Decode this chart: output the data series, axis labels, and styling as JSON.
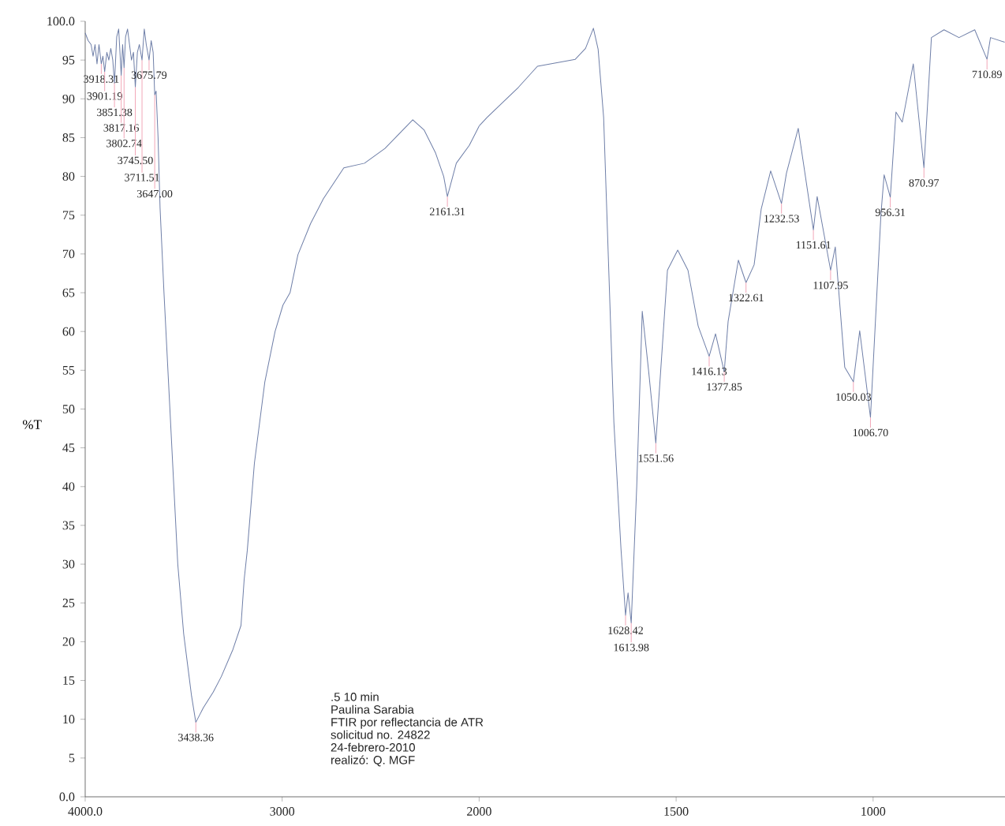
{
  "chart_data": [
    {
      "type": "line",
      "ylabel": "%T",
      "xlim": [
        4000,
        2000
      ],
      "xticks": [
        {
          "value": 4000,
          "label": "4000.0"
        },
        3000,
        2000
      ],
      "ylim": [
        0,
        100
      ],
      "yticks": [
        {
          "value": 0,
          "label": "0.0"
        },
        5,
        10,
        15,
        20,
        25,
        30,
        35,
        40,
        45,
        50,
        55,
        60,
        65,
        70,
        75,
        80,
        85,
        90,
        95,
        {
          "value": 100,
          "label": "100.0"
        }
      ],
      "series": [
        {
          "color": "#6f7fa8",
          "x": [
            4000,
            3985,
            3970,
            3960,
            3950,
            3940,
            3930,
            3918.31,
            3910,
            3901.19,
            3890,
            3880,
            3870,
            3860,
            3851.38,
            3840,
            3830,
            3817.16,
            3810,
            3802.74,
            3795,
            3785,
            3775,
            3765,
            3755,
            3745.5,
            3735,
            3725,
            3711.51,
            3700,
            3690,
            3675.79,
            3665,
            3655,
            3647.0,
            3640,
            3630,
            3620,
            3600,
            3590,
            3560,
            3530,
            3500,
            3480,
            3460,
            3438.36,
            3400,
            3350,
            3309,
            3250,
            3209,
            3193,
            3177,
            3141,
            3088,
            3036,
            2996,
            2960,
            2920,
            2856,
            2791,
            2687,
            2582,
            2478,
            2337,
            2280,
            2221,
            2180,
            2161.31,
            2116,
            2050,
            2000
          ],
          "values": [
            98.5,
            97.5,
            97,
            95.5,
            97,
            94.5,
            97,
            94.5,
            95.5,
            93.5,
            96,
            95,
            96.5,
            95,
            92,
            98,
            99,
            93,
            97,
            94,
            98,
            99,
            97,
            95,
            96,
            91.5,
            96,
            97,
            95,
            99,
            97,
            95,
            97.5,
            96,
            90.5,
            91,
            85,
            76,
            65,
            60,
            45,
            30,
            21,
            17,
            13,
            9.6,
            11.5,
            13.5,
            15.5,
            19,
            22.1,
            28,
            31.8,
            43,
            53.5,
            60,
            63.4,
            65,
            69.9,
            73.9,
            77.1,
            81.1,
            81.7,
            83.6,
            87.3,
            86,
            83,
            80,
            77.4,
            81.7,
            84,
            86.5
          ]
        }
      ],
      "annotations": [
        {
          "text": "3918.31",
          "x": 3918.31,
          "y": 94.5
        },
        {
          "text": "3901.19",
          "x": 3901.19,
          "y": 93.5
        },
        {
          "text": "3851.38",
          "x": 3851.38,
          "y": 92
        },
        {
          "text": "3817.16",
          "x": 3817.16,
          "y": 93
        },
        {
          "text": "3802.74",
          "x": 3802.74,
          "y": 94
        },
        {
          "text": "3745.50",
          "x": 3745.5,
          "y": 91.5
        },
        {
          "text": "3711.51",
          "x": 3711.51,
          "y": 95
        },
        {
          "text": "3675.79",
          "x": 3675.79,
          "y": 95
        },
        {
          "text": "3647.00",
          "x": 3647.0,
          "y": 90.5
        },
        {
          "text": "3438.36",
          "x": 3438.36,
          "y": 9.6
        },
        {
          "text": "2161.31",
          "x": 2161.31,
          "y": 77.4
        },
        ".5  10 min",
        "Paulina Sarabia",
        "FTIR por reflectancia de ATR",
        "solicitud no. 24822",
        "24-febrero-2010",
        "realizó: Q. MGF"
      ]
    },
    {
      "type": "line",
      "xlim": [
        2000,
        665
      ],
      "xticks": [
        1500,
        1000
      ],
      "ylim": [
        0,
        100
      ],
      "tick_labels": "x",
      "series": [
        {
          "color": "#6f7fa8",
          "x": [
            2000,
            1980,
            1900,
            1852,
            1756,
            1730,
            1710,
            1698,
            1684,
            1658,
            1640,
            1628.42,
            1622,
            1613.98,
            1600,
            1586,
            1570,
            1551.56,
            1522,
            1496,
            1470,
            1444,
            1416.13,
            1400,
            1377.85,
            1368,
            1342,
            1322.61,
            1302,
            1284,
            1260,
            1232.53,
            1220,
            1190,
            1151.61,
            1142,
            1107.95,
            1096,
            1072,
            1050.03,
            1034,
            1006.7,
            980,
            972,
            956.31,
            942,
            926,
            898,
            870.97,
            852,
            820,
            782,
            742,
            710.89,
            702,
            666
          ],
          "values": [
            86.5,
            87.6,
            91.5,
            94.2,
            95.1,
            96.5,
            99.1,
            96.4,
            87.6,
            48.3,
            32,
            23.4,
            26.3,
            22.4,
            40,
            62.6,
            55,
            45.6,
            67.9,
            70.5,
            67.9,
            60.7,
            56.8,
            59.7,
            54.8,
            61.3,
            69.2,
            66.3,
            68.6,
            75.8,
            80.7,
            76.5,
            80.4,
            86.2,
            73.1,
            77.4,
            67.9,
            70.9,
            55.4,
            53.5,
            60.1,
            48.9,
            75.2,
            80.2,
            77.3,
            88.3,
            87.0,
            94.5,
            81.1,
            97.9,
            98.9,
            97.9,
            98.9,
            95.1,
            97.9,
            97.3
          ]
        }
      ],
      "annotations": [
        {
          "text": "1628.42",
          "x": 1628.42,
          "y": 23.4
        },
        {
          "text": "1613.98",
          "x": 1613.98,
          "y": 22.4
        },
        {
          "text": "1551.56",
          "x": 1551.56,
          "y": 45.6
        },
        {
          "text": "1416.13",
          "x": 1416.13,
          "y": 56.8
        },
        {
          "text": "1377.85",
          "x": 1377.85,
          "y": 54.8
        },
        {
          "text": "1322.61",
          "x": 1322.61,
          "y": 66.3
        },
        {
          "text": "1232.53",
          "x": 1232.53,
          "y": 76.5
        },
        {
          "text": "1151.61",
          "x": 1151.61,
          "y": 73.1
        },
        {
          "text": "1107.95",
          "x": 1107.95,
          "y": 67.9
        },
        {
          "text": "1050.03",
          "x": 1050.03,
          "y": 53.5
        },
        {
          "text": "1006.70",
          "x": 1006.7,
          "y": 48.9
        },
        {
          "text": "956.31",
          "x": 956.31,
          "y": 77.3
        },
        {
          "text": "870.97",
          "x": 870.97,
          "y": 81.1
        },
        {
          "text": "710.89",
          "x": 710.89,
          "y": 95.1
        }
      ]
    }
  ]
}
